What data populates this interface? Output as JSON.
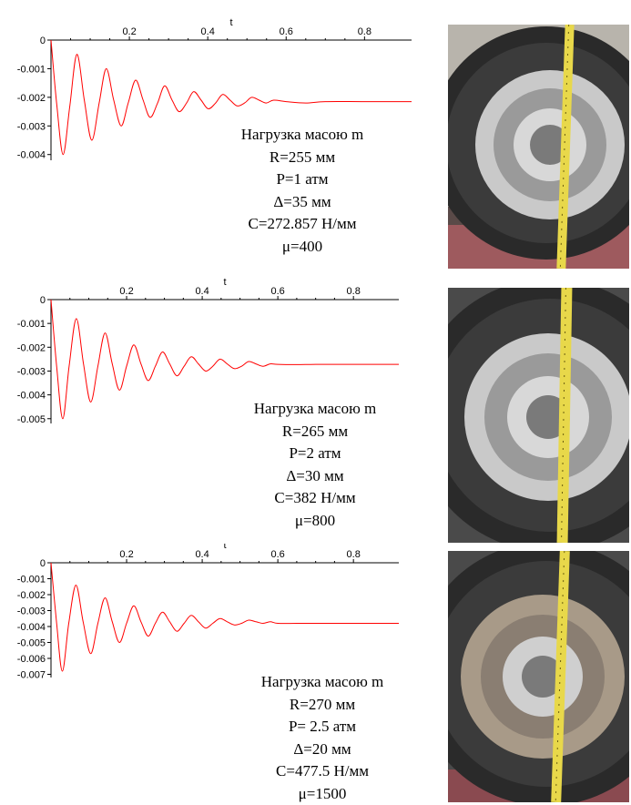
{
  "panels": [
    {
      "chart_data": {
        "type": "line",
        "xlabel": "t",
        "x_ticks": [
          "0.2",
          "0.4",
          "0.6",
          "0.8"
        ],
        "y_ticks": [
          "0",
          "-0.001",
          "-0.002",
          "-0.003",
          "-0.004"
        ],
        "xlim": [
          0,
          0.92
        ],
        "ylim": [
          -0.0042,
          0
        ],
        "series": [
          {
            "color": "#ff0000",
            "x": [
              0,
              0.015,
              0.031,
              0.048,
              0.066,
              0.085,
              0.104,
              0.123,
              0.141,
              0.16,
              0.179,
              0.197,
              0.216,
              0.235,
              0.253,
              0.272,
              0.29,
              0.309,
              0.327,
              0.346,
              0.364,
              0.383,
              0.401,
              0.42,
              0.438,
              0.457,
              0.475,
              0.494,
              0.512,
              0.531,
              0.549,
              0.568,
              0.6,
              0.65,
              0.7,
              0.8,
              0.92
            ],
            "y": [
              0,
              -0.0023,
              -0.004,
              -0.0023,
              -0.0005,
              -0.0021,
              -0.0035,
              -0.0022,
              -0.001,
              -0.0021,
              -0.003,
              -0.0022,
              -0.0014,
              -0.0021,
              -0.0027,
              -0.0022,
              -0.0016,
              -0.0021,
              -0.0025,
              -0.0022,
              -0.0018,
              -0.0021,
              -0.0024,
              -0.0022,
              -0.0019,
              -0.0021,
              -0.0023,
              -0.0022,
              -0.002,
              -0.0021,
              -0.0022,
              -0.0021,
              -0.00215,
              -0.0022,
              -0.00215,
              -0.00215,
              -0.00215
            ]
          }
        ]
      },
      "params": [
        "Нагрузка масою m",
        "R=255 мм",
        "P=1 атм",
        "Δ=35 мм",
        "C=272.857 Н/мм",
        "μ=400"
      ]
    },
    {
      "chart_data": {
        "type": "line",
        "xlabel": "t",
        "x_ticks": [
          "0.2",
          "0.4",
          "0.6",
          "0.8"
        ],
        "y_ticks": [
          "0",
          "-0.001",
          "-0.002",
          "-0.003",
          "-0.004",
          "-0.005"
        ],
        "xlim": [
          0,
          0.92
        ],
        "ylim": [
          -0.0052,
          0
        ],
        "series": [
          {
            "color": "#ff0000",
            "x": [
              0,
              0.015,
              0.031,
              0.048,
              0.067,
              0.086,
              0.105,
              0.124,
              0.143,
              0.162,
              0.181,
              0.2,
              0.219,
              0.238,
              0.257,
              0.276,
              0.295,
              0.314,
              0.333,
              0.352,
              0.371,
              0.39,
              0.409,
              0.428,
              0.447,
              0.466,
              0.485,
              0.504,
              0.523,
              0.542,
              0.561,
              0.58,
              0.6,
              0.65,
              0.7,
              0.8,
              0.92
            ],
            "y": [
              0,
              -0.0028,
              -0.005,
              -0.0028,
              -0.0008,
              -0.0027,
              -0.0043,
              -0.0028,
              -0.0014,
              -0.0027,
              -0.0038,
              -0.0028,
              -0.0019,
              -0.0027,
              -0.0034,
              -0.0028,
              -0.0022,
              -0.0027,
              -0.0032,
              -0.0028,
              -0.0024,
              -0.0027,
              -0.003,
              -0.0028,
              -0.0025,
              -0.0027,
              -0.0029,
              -0.0028,
              -0.0026,
              -0.0027,
              -0.0028,
              -0.0027,
              -0.00272,
              -0.00273,
              -0.00272,
              -0.00272,
              -0.00272
            ]
          }
        ]
      },
      "params": [
        "Нагрузка масою m",
        "R=265 мм",
        "P=2 атм",
        "Δ=30 мм",
        "C=382 Н/мм",
        "μ=800"
      ]
    },
    {
      "chart_data": {
        "type": "line",
        "xlabel": "t",
        "x_ticks": [
          "0.2",
          "0.4",
          "0.6",
          "0.8"
        ],
        "y_ticks": [
          "0",
          "-0.001",
          "-0.002",
          "-0.003",
          "-0.004",
          "-0.005",
          "-0.006",
          "-0.007"
        ],
        "xlim": [
          0,
          0.92
        ],
        "ylim": [
          -0.0072,
          0
        ],
        "series": [
          {
            "color": "#ff0000",
            "x": [
              0,
              0.015,
              0.03,
              0.047,
              0.066,
              0.085,
              0.105,
              0.124,
              0.143,
              0.162,
              0.181,
              0.2,
              0.219,
              0.238,
              0.257,
              0.276,
              0.295,
              0.314,
              0.333,
              0.352,
              0.371,
              0.39,
              0.409,
              0.428,
              0.447,
              0.466,
              0.485,
              0.504,
              0.523,
              0.542,
              0.561,
              0.58,
              0.6,
              0.65,
              0.7,
              0.8,
              0.92
            ],
            "y": [
              0,
              -0.0038,
              -0.0068,
              -0.0038,
              -0.0014,
              -0.0037,
              -0.0057,
              -0.0038,
              -0.0022,
              -0.0037,
              -0.005,
              -0.0038,
              -0.0027,
              -0.0037,
              -0.0046,
              -0.0038,
              -0.0031,
              -0.0037,
              -0.0043,
              -0.0038,
              -0.0033,
              -0.0037,
              -0.0041,
              -0.0038,
              -0.0035,
              -0.0037,
              -0.0039,
              -0.0038,
              -0.0036,
              -0.0037,
              -0.0038,
              -0.0037,
              -0.0038,
              -0.0038,
              -0.0038,
              -0.0038,
              -0.0038
            ]
          }
        ]
      },
      "params": [
        "Нагрузка масою m",
        "R=270 мм",
        "P= 2.5 атм",
        "Δ=20 мм",
        "C=477.5 Н/мм",
        "μ=1500"
      ]
    }
  ],
  "colors": {
    "curve": "#ff0000",
    "axis": "#000000",
    "tire": "#2a2a2a",
    "rim": "#c9c9c9",
    "tape": "#e8d84a",
    "floor": "#9e5a5e",
    "wall": "#b8b4ac"
  }
}
